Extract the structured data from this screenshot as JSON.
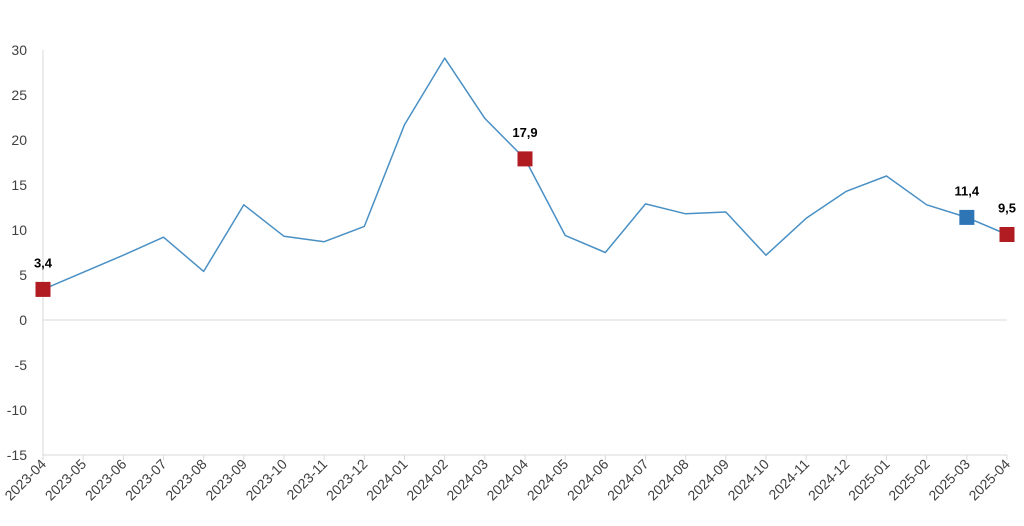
{
  "chart_data": {
    "type": "line",
    "title": "",
    "xlabel": "",
    "ylabel": "",
    "ylim": [
      -15,
      30
    ],
    "y_ticks": [
      "-15",
      "-10",
      "-5",
      "0",
      "5",
      "10",
      "15",
      "20",
      "25",
      "30"
    ],
    "grid": false,
    "categories": [
      "2023-04",
      "2023-05",
      "2023-06",
      "2023-07",
      "2023-08",
      "2023-09",
      "2023-10",
      "2023-11",
      "2023-12",
      "2024-01",
      "2024-02",
      "2024-03",
      "2024-04",
      "2024-05",
      "2024-06",
      "2024-07",
      "2024-08",
      "2024-09",
      "2024-10",
      "2024-11",
      "2024-12",
      "2025-01",
      "2025-02",
      "2025-03",
      "2025-04"
    ],
    "series": [
      {
        "values": [
          3.4,
          5.3,
          7.2,
          9.2,
          5.4,
          12.8,
          9.3,
          8.7,
          10.4,
          21.7,
          29.1,
          22.4,
          17.9,
          9.4,
          7.5,
          12.9,
          11.8,
          12.0,
          7.2,
          11.3,
          14.3,
          16.0,
          12.8,
          11.4,
          9.5
        ]
      }
    ],
    "highlights": [
      {
        "category": "2023-04",
        "label": "3,4",
        "color": "#b01c22"
      },
      {
        "category": "2024-04",
        "label": "17,9",
        "color": "#b01c22"
      },
      {
        "category": "2025-03",
        "label": "11,4",
        "color": "#2e75b6"
      },
      {
        "category": "2025-04",
        "label": "9,5",
        "color": "#b01c22"
      }
    ],
    "line_color": "#4a90c4",
    "axis_color": "#d9d9d9"
  }
}
